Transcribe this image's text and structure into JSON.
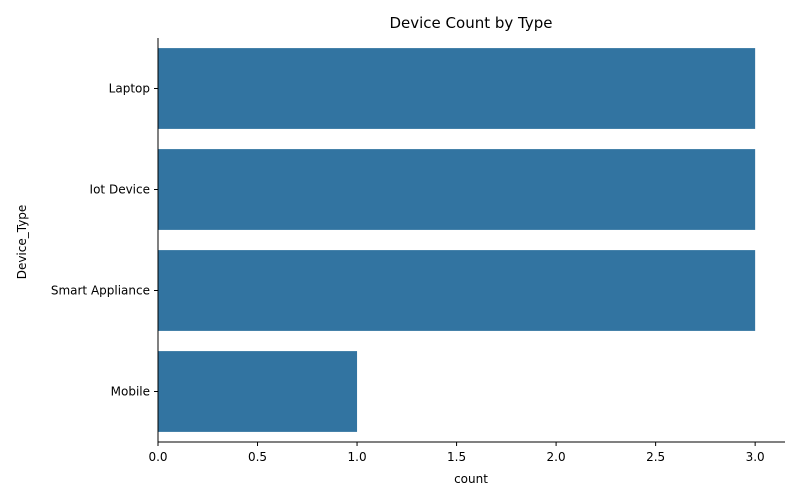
{
  "chart_data": {
    "type": "bar",
    "orientation": "horizontal",
    "title": "Device Count by Type",
    "xlabel": "count",
    "ylabel": "Device_Type",
    "categories": [
      "Laptop",
      "Iot Device",
      "Smart Appliance",
      "Mobile"
    ],
    "values": [
      3,
      3,
      3,
      1
    ],
    "xlim": [
      0,
      3.15
    ],
    "xticks": [
      "0.0",
      "0.5",
      "1.0",
      "1.5",
      "2.0",
      "2.5",
      "3.0"
    ],
    "grid": false,
    "legend": "none",
    "bar_color": "#3274a1"
  }
}
